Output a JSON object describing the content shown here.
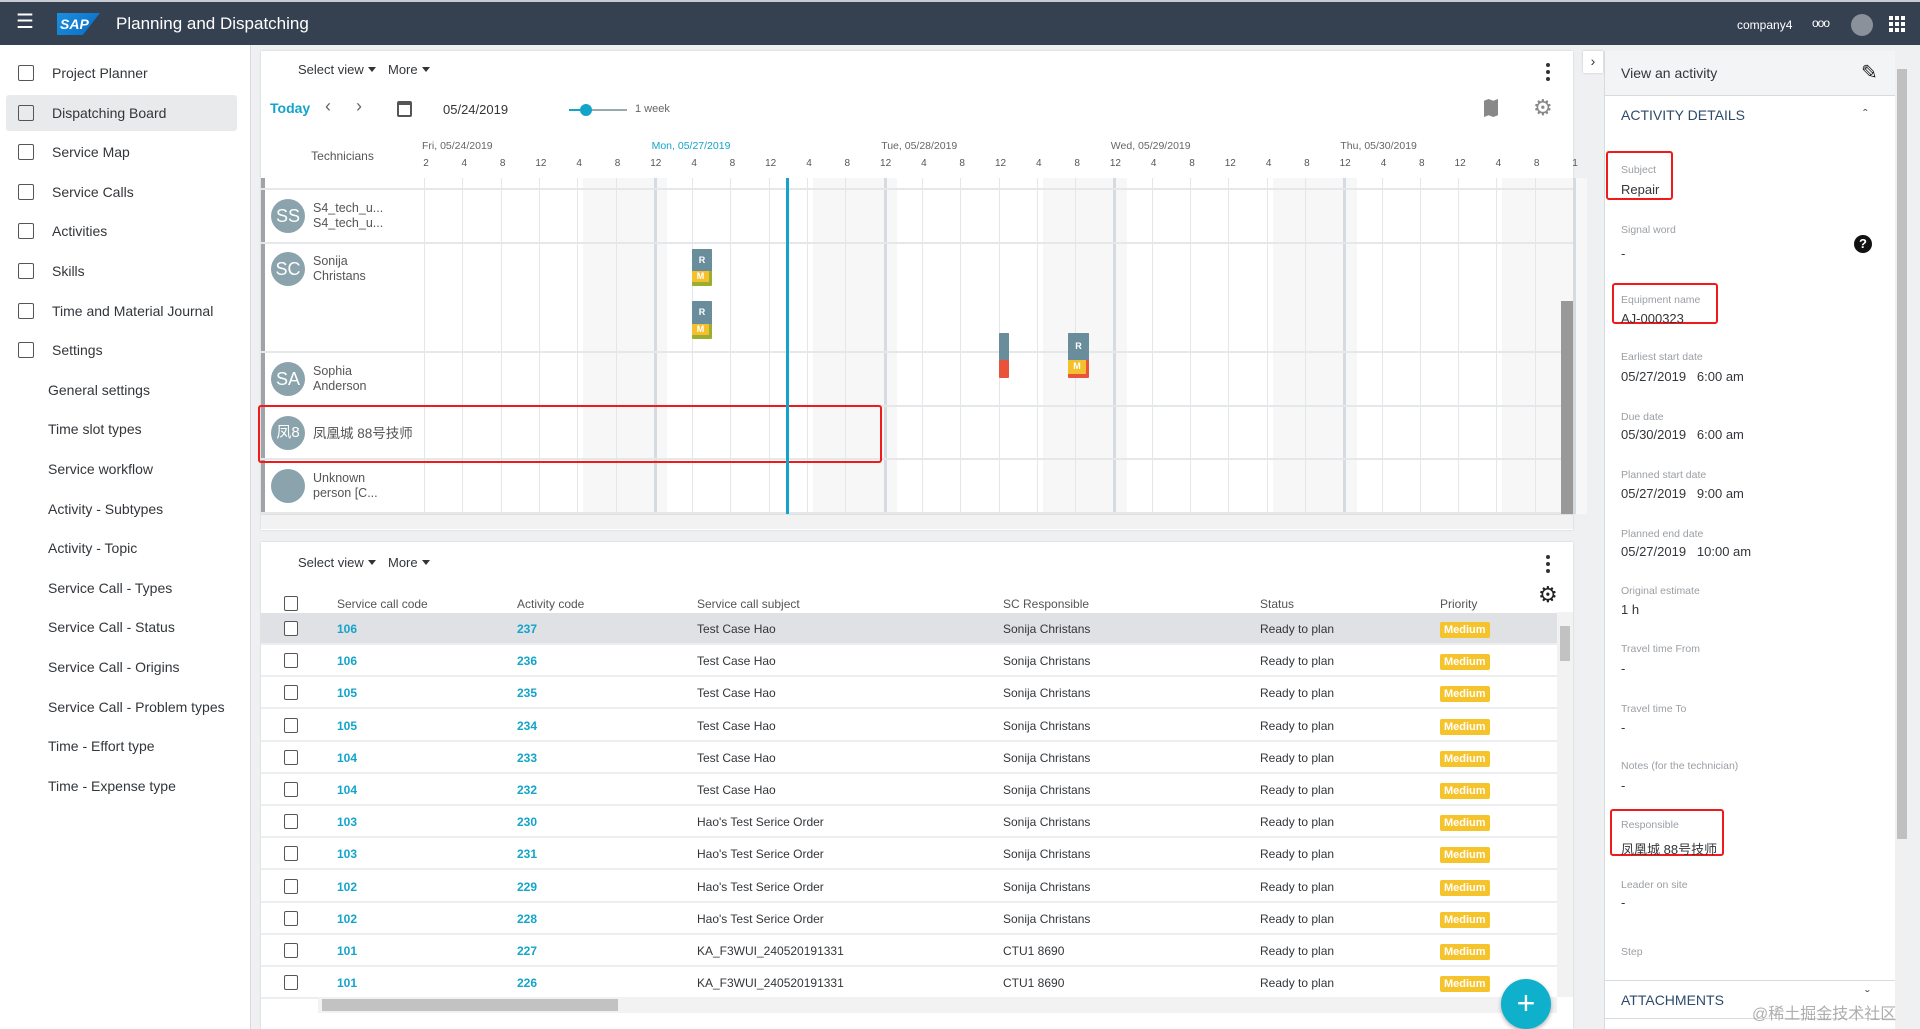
{
  "header": {
    "title": "Planning and Dispatching",
    "logo": "SAP",
    "company": "company4",
    "more": "ooo"
  },
  "sidebar": {
    "items": [
      {
        "label": "Project Planner",
        "icon": "project-planner-icon"
      },
      {
        "label": "Dispatching Board",
        "icon": "dispatching-board-icon",
        "active": true
      },
      {
        "label": "Service Map",
        "icon": "map-icon"
      },
      {
        "label": "Service Calls",
        "icon": "phone-icon"
      },
      {
        "label": "Activities",
        "icon": "clipboard-icon"
      },
      {
        "label": "Skills",
        "icon": "badge-icon"
      },
      {
        "label": "Time and Material Journal",
        "icon": "briefcase-icon"
      },
      {
        "label": "Settings",
        "icon": "gear-icon"
      }
    ],
    "sub_items": [
      "General settings",
      "Time slot types",
      "Service workflow",
      "Activity - Subtypes",
      "Activity - Topic",
      "Service Call - Types",
      "Service Call - Status",
      "Service Call - Origins",
      "Service Call - Problem types",
      "Time - Effort type",
      "Time - Expense type"
    ]
  },
  "gantt": {
    "select_view": "Select view",
    "more": "More",
    "today": "Today",
    "date": "05/24/2019",
    "zoom_label": "1 week",
    "zoom_level": 0.3,
    "technicians_header": "Technicians",
    "days": [
      {
        "label": "Fri, 05/24/2019"
      },
      {
        "label": "Mon, 05/27/2019",
        "current": true
      },
      {
        "label": "Tue, 05/28/2019"
      },
      {
        "label": "Wed, 05/29/2019"
      },
      {
        "label": "Thu, 05/30/2019"
      }
    ],
    "ticks": [
      "2",
      "4",
      "8",
      "12",
      "4",
      "8",
      "12",
      "4",
      "8",
      "12",
      "4",
      "8",
      "12",
      "4",
      "8",
      "12",
      "4",
      "8",
      "12",
      "4",
      "8",
      "12",
      "4",
      "8",
      "12",
      "4",
      "8",
      "12",
      "4",
      "8",
      "1"
    ],
    "technicians": [
      {
        "initials": "SS",
        "name1": "S4_tech_u...",
        "name2": "S4_tech_u..."
      },
      {
        "initials": "SC",
        "name1": "Sonija",
        "name2": "Christans"
      },
      {
        "initials": "SA",
        "name1": "Sophia",
        "name2": "Anderson"
      },
      {
        "initials": "凤8",
        "name1": "凤凰城 88号技师",
        "name2": ""
      },
      {
        "initials": "",
        "name1": "Unknown",
        "name2": "person [C..."
      }
    ],
    "activity_labels": {
      "r": "R",
      "m": "M"
    }
  },
  "table": {
    "select_view": "Select view",
    "more": "More",
    "columns": [
      "Service call code",
      "Activity code",
      "Service call subject",
      "SC Responsible",
      "Status",
      "Priority"
    ],
    "rows": [
      [
        "106",
        "237",
        "Test Case Hao",
        "Sonija Christans",
        "Ready to plan",
        "Medium"
      ],
      [
        "106",
        "236",
        "Test Case Hao",
        "Sonija Christans",
        "Ready to plan",
        "Medium"
      ],
      [
        "105",
        "235",
        "Test Case Hao",
        "Sonija Christans",
        "Ready to plan",
        "Medium"
      ],
      [
        "105",
        "234",
        "Test Case Hao",
        "Sonija Christans",
        "Ready to plan",
        "Medium"
      ],
      [
        "104",
        "233",
        "Test Case Hao",
        "Sonija Christans",
        "Ready to plan",
        "Medium"
      ],
      [
        "104",
        "232",
        "Test Case Hao",
        "Sonija Christans",
        "Ready to plan",
        "Medium"
      ],
      [
        "103",
        "230",
        "Hao's Test Serice Order",
        "Sonija Christans",
        "Ready to plan",
        "Medium"
      ],
      [
        "103",
        "231",
        "Hao's Test Serice Order",
        "Sonija Christans",
        "Ready to plan",
        "Medium"
      ],
      [
        "102",
        "229",
        "Hao's Test Serice Order",
        "Sonija Christans",
        "Ready to plan",
        "Medium"
      ],
      [
        "102",
        "228",
        "Hao's Test Serice Order",
        "Sonija Christans",
        "Ready to plan",
        "Medium"
      ],
      [
        "101",
        "227",
        "KA_F3WUI_240520191331",
        "CTU1 8690",
        "Ready to plan",
        "Medium"
      ],
      [
        "101",
        "226",
        "KA_F3WUI_240520191331",
        "CTU1 8690",
        "Ready to plan",
        "Medium"
      ]
    ]
  },
  "detail": {
    "title": "View an activity",
    "section": "ACTIVITY DETAILS",
    "attachments": "ATTACHMENTS",
    "fields": [
      {
        "label": "Subject",
        "value": "Repair"
      },
      {
        "label": "Signal word",
        "value": "-"
      },
      {
        "label": "Equipment name",
        "value": "AJ-000323"
      },
      {
        "label": "Earliest start date",
        "value": "05/27/2019   6:00 am"
      },
      {
        "label": "Due date",
        "value": "05/30/2019   6:00 am"
      },
      {
        "label": "Planned start date",
        "value": "05/27/2019   9:00 am"
      },
      {
        "label": "Planned end date",
        "value": "05/27/2019   10:00 am"
      },
      {
        "label": "Original estimate",
        "value": "1 h"
      },
      {
        "label": "Travel time From",
        "value": "-"
      },
      {
        "label": "Travel time To",
        "value": "-"
      },
      {
        "label": "Notes (for the technician)",
        "value": "-"
      },
      {
        "label": "Responsible",
        "value": "凤凰城 88号技师"
      },
      {
        "label": "Leader on site",
        "value": "-"
      },
      {
        "label": "Step",
        "value": ""
      }
    ]
  },
  "watermark": "@稀土掘金技术社区",
  "colors": {
    "accent": "#13a4c9",
    "header": "#354050",
    "highlight": "#f01a1a",
    "priority_medium": "#f5c42c"
  }
}
